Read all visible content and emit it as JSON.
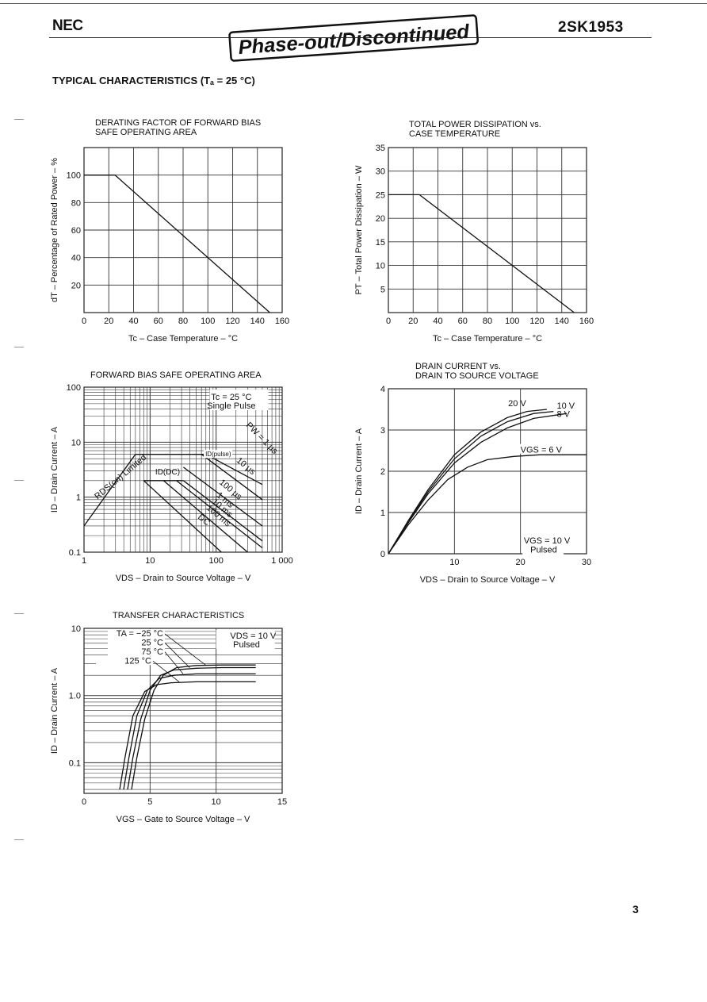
{
  "header": {
    "logo": "NEC",
    "stamp": "Phase-out/Discontinued",
    "part_number": "2SK1953",
    "section_title": "TYPICAL CHARACTERISTICS (Tₐ = 25 °C)"
  },
  "page_number": "3",
  "chart_data": [
    {
      "id": "derating",
      "type": "line",
      "title": "DERATING FACTOR OF FORWARD BIAS SAFE OPERATING AREA",
      "title_lines": [
        "DERATING FACTOR OF FORWARD BIAS",
        "SAFE OPERATING AREA"
      ],
      "xlabel": "Tc – Case Temperature – °C",
      "ylabel": "dT – Percentage of Rated Power – %",
      "xlim": [
        0,
        160
      ],
      "ylim": [
        0,
        120
      ],
      "xticks": [
        0,
        20,
        40,
        60,
        80,
        100,
        120,
        140,
        160
      ],
      "yticks": [
        20,
        40,
        60,
        80,
        100
      ],
      "xtick_labels": [
        "0",
        "20",
        "40",
        "60",
        "80",
        "100",
        "120",
        "140",
        "160"
      ],
      "ytick_labels": [
        "20",
        "40",
        "60",
        "80",
        "100"
      ],
      "series": [
        {
          "name": "derating",
          "x": [
            0,
            25,
            150
          ],
          "y": [
            100,
            100,
            0
          ]
        }
      ]
    },
    {
      "id": "power",
      "type": "line",
      "title": "TOTAL POWER DISSIPATION vs. CASE TEMPERATURE",
      "title_lines": [
        "TOTAL POWER DISSIPATION vs.",
        "CASE TEMPERATURE"
      ],
      "xlabel": "Tc – Case Temperature – °C",
      "ylabel": "PT – Total Power Dissipation – W",
      "xlim": [
        0,
        160
      ],
      "ylim": [
        0,
        35
      ],
      "xticks": [
        0,
        20,
        40,
        60,
        80,
        100,
        120,
        140,
        160
      ],
      "yticks": [
        5,
        10,
        15,
        20,
        25,
        30,
        35
      ],
      "xtick_labels": [
        "0",
        "20",
        "40",
        "60",
        "80",
        "100",
        "120",
        "140",
        "160"
      ],
      "ytick_labels": [
        "5",
        "10",
        "15",
        "20",
        "25",
        "30",
        "35"
      ],
      "series": [
        {
          "name": "PT",
          "x": [
            0,
            25,
            150
          ],
          "y": [
            25,
            25,
            0
          ]
        }
      ]
    },
    {
      "id": "soa",
      "type": "line",
      "title": "FORWARD BIAS SAFE OPERATING AREA",
      "title_lines": [
        "FORWARD BIAS SAFE OPERATING AREA"
      ],
      "xlabel": "VDS – Drain to Source Voltage – V",
      "ylabel": "ID – Drain Current – A",
      "xscale": "log",
      "yscale": "log",
      "xlim": [
        1,
        1000
      ],
      "ylim": [
        0.1,
        100
      ],
      "xticks": [
        1,
        10,
        100,
        1000
      ],
      "yticks": [
        0.1,
        1,
        10,
        100
      ],
      "xtick_labels": [
        "1",
        "10",
        "100",
        "1 000"
      ],
      "ytick_labels": [
        "0.1",
        "1",
        "10",
        "100"
      ],
      "annotations": [
        "Tc = 25 °C",
        "Single Pulse",
        "PW = 1 μs",
        "10 μs",
        "100 μs",
        "1 ms",
        "10 ms",
        "100 ms",
        "DC",
        "ID(pulse)",
        "ID(DC)",
        "RDS(on) Limited"
      ],
      "series": [
        {
          "name": "RDS(on) Limited",
          "x": [
            1,
            6
          ],
          "y": [
            0.3,
            6
          ]
        },
        {
          "name": "ID(pulse)",
          "x": [
            6,
            70
          ],
          "y": [
            6,
            6
          ]
        },
        {
          "name": "ID(DC)",
          "x": [
            8,
            32
          ],
          "y": [
            2,
            2
          ]
        },
        {
          "name": "1 μs",
          "x": [
            70,
            500
          ],
          "y": [
            6,
            1.7
          ]
        },
        {
          "name": "10 μs",
          "x": [
            60,
            500
          ],
          "y": [
            6,
            0.9
          ]
        },
        {
          "name": "100 μs",
          "x": [
            32,
            500
          ],
          "y": [
            3.5,
            0.3
          ]
        },
        {
          "name": "1 ms",
          "x": [
            32,
            500
          ],
          "y": [
            2,
            0.16
          ]
        },
        {
          "name": "10 ms",
          "x": [
            25,
            500
          ],
          "y": [
            2,
            0.12
          ]
        },
        {
          "name": "100 ms",
          "x": [
            16,
            300
          ],
          "y": [
            2,
            0.1
          ]
        },
        {
          "name": "DC",
          "x": [
            8,
            120
          ],
          "y": [
            2,
            0.1
          ]
        }
      ]
    },
    {
      "id": "output",
      "type": "line",
      "title": "DRAIN CURRENT vs. DRAIN TO SOURCE VOLTAGE",
      "title_lines": [
        "DRAIN CURRENT vs.",
        "DRAIN TO SOURCE VOLTAGE"
      ],
      "xlabel": "VDS – Drain to Source Voltage – V",
      "ylabel": "ID – Drain Current – A",
      "xlim": [
        0,
        30
      ],
      "ylim": [
        0,
        4
      ],
      "xticks": [
        10,
        20,
        30
      ],
      "yticks": [
        0,
        1,
        2,
        3,
        4
      ],
      "xtick_labels": [
        "10",
        "20",
        "30"
      ],
      "ytick_labels": [
        "0",
        "1",
        "2",
        "3",
        "4"
      ],
      "annotations": [
        "VGS = 10 V",
        "Pulsed"
      ],
      "series": [
        {
          "name": "20 V",
          "x": [
            0,
            3,
            6,
            10,
            14,
            18,
            21,
            24
          ],
          "y": [
            0,
            0.8,
            1.55,
            2.4,
            2.95,
            3.3,
            3.45,
            3.5
          ]
        },
        {
          "name": "10 V",
          "x": [
            0,
            3,
            6,
            10,
            14,
            18,
            22,
            25
          ],
          "y": [
            0,
            0.78,
            1.5,
            2.3,
            2.85,
            3.2,
            3.4,
            3.45
          ]
        },
        {
          "name": "8 V",
          "x": [
            0,
            3,
            6,
            10,
            14,
            18,
            22,
            27
          ],
          "y": [
            0,
            0.75,
            1.45,
            2.2,
            2.7,
            3.05,
            3.28,
            3.4
          ]
        },
        {
          "name": "VGS = 6 V",
          "x": [
            0,
            3,
            6,
            9,
            12,
            15,
            19,
            23,
            30
          ],
          "y": [
            0,
            0.7,
            1.3,
            1.8,
            2.1,
            2.28,
            2.36,
            2.4,
            2.4
          ]
        }
      ]
    },
    {
      "id": "transfer",
      "type": "line",
      "title": "TRANSFER CHARACTERISTICS",
      "title_lines": [
        "TRANSFER CHARACTERISTICS"
      ],
      "xlabel": "VGS – Gate to Source Voltage – V",
      "ylabel": "ID – Drain Current – A",
      "yscale": "log",
      "xlim": [
        0,
        15
      ],
      "ylim": [
        0.035,
        10
      ],
      "xticks": [
        0,
        5,
        10,
        15
      ],
      "yticks": [
        0.1,
        1,
        10
      ],
      "xtick_labels": [
        "0",
        "5",
        "10",
        "15"
      ],
      "ytick_labels": [
        "0.1",
        "1.0",
        "10"
      ],
      "annotations": [
        "VDS = 10 V",
        "Pulsed"
      ],
      "series": [
        {
          "name": "TA = −25 °C",
          "x": [
            3.6,
            4.0,
            4.6,
            5.3,
            6.0,
            7.0,
            8.5,
            10.5,
            13.0
          ],
          "y": [
            0.04,
            0.12,
            0.45,
            1.2,
            2.0,
            2.6,
            2.8,
            2.85,
            2.85
          ]
        },
        {
          "name": "25 °C",
          "x": [
            3.3,
            3.7,
            4.3,
            5.0,
            5.8,
            6.8,
            8.5,
            10.5,
            13.0
          ],
          "y": [
            0.04,
            0.12,
            0.45,
            1.2,
            2.0,
            2.4,
            2.55,
            2.6,
            2.6
          ]
        },
        {
          "name": "75 °C",
          "x": [
            3.0,
            3.4,
            4.0,
            4.8,
            5.7,
            6.8,
            8.5,
            10.5,
            13.0
          ],
          "y": [
            0.04,
            0.12,
            0.5,
            1.2,
            1.8,
            2.0,
            2.1,
            2.1,
            2.1
          ]
        },
        {
          "name": "125 °C",
          "x": [
            2.7,
            3.1,
            3.7,
            4.6,
            5.5,
            6.6,
            8.5,
            10.5,
            13.0
          ],
          "y": [
            0.04,
            0.12,
            0.5,
            1.15,
            1.45,
            1.55,
            1.6,
            1.6,
            1.6
          ]
        }
      ]
    }
  ]
}
